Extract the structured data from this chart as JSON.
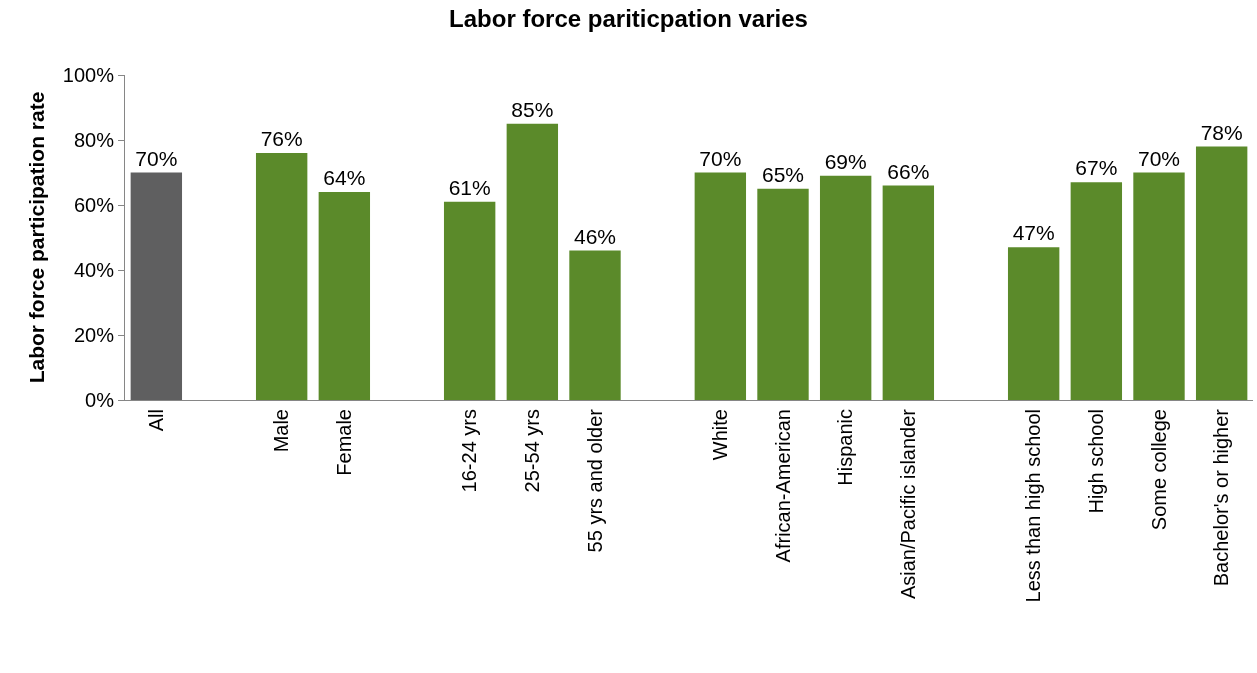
{
  "chart_data": {
    "type": "bar",
    "title": "Labor force pariticpation varies",
    "ylabel": "Labor force participation rate",
    "categories": [
      "All",
      null,
      "Male",
      "Female",
      null,
      "16-24 yrs",
      "25-54 yrs",
      "55 yrs and older",
      null,
      "White",
      "African-American",
      "Hispanic",
      "Asian/Pacific islander",
      null,
      "Less than high school",
      "High school",
      "Some college",
      "Bachelor's or higher"
    ],
    "values": [
      70,
      null,
      76,
      64,
      null,
      61,
      85,
      46,
      null,
      70,
      65,
      69,
      66,
      null,
      47,
      67,
      70,
      78
    ],
    "value_labels": [
      "70%",
      null,
      "76%",
      "64%",
      null,
      "61%",
      "85%",
      "46%",
      null,
      "70%",
      "65%",
      "69%",
      "66%",
      null,
      "47%",
      "67%",
      "70%",
      "78%"
    ],
    "colors": [
      "#5f5f60",
      null,
      "#5b8a2a",
      "#5b8a2a",
      null,
      "#5b8a2a",
      "#5b8a2a",
      "#5b8a2a",
      null,
      "#5b8a2a",
      "#5b8a2a",
      "#5b8a2a",
      "#5b8a2a",
      null,
      "#5b8a2a",
      "#5b8a2a",
      "#5b8a2a",
      "#5b8a2a"
    ],
    "ylim": [
      0,
      100
    ],
    "yticks": [
      {
        "value": 0,
        "label": "0%"
      },
      {
        "value": 20,
        "label": "20%"
      },
      {
        "value": 40,
        "label": "40%"
      },
      {
        "value": 60,
        "label": "60%"
      },
      {
        "value": 80,
        "label": "80%"
      },
      {
        "value": 100,
        "label": "100%"
      }
    ],
    "grid": false
  }
}
